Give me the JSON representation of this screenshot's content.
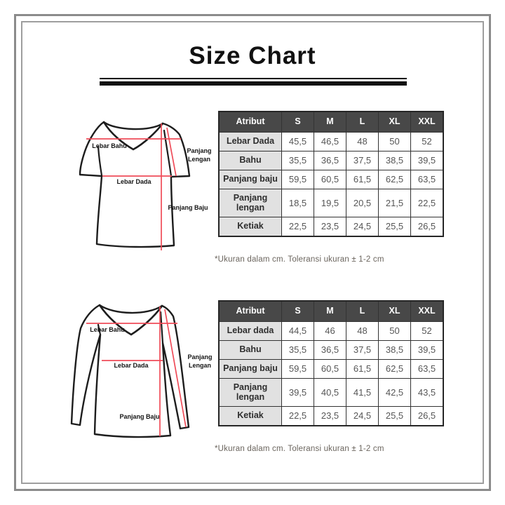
{
  "page": {
    "title": "Size Chart"
  },
  "colors": {
    "measure_line": "#ef4b58",
    "table_header_bg": "#484848",
    "attribute_cell_bg": "#e1e1e1",
    "frame_border": "#8b8b8b",
    "underline": "#111111"
  },
  "sections": [
    {
      "name": "short-sleeve",
      "diagram": {
        "garment": "short-sleeve-vneck-top",
        "labels": {
          "lebar_bahu": "Lebar Bahu",
          "lebar_dada": "Lebar Dada",
          "panjang_baju": "Panjang Baju",
          "panjang_lengan_line1": "Panjang",
          "panjang_lengan_line2": "Lengan"
        }
      },
      "table": {
        "headers": [
          "Atribut",
          "S",
          "M",
          "L",
          "XL",
          "XXL"
        ],
        "rows": [
          {
            "label": "Lebar Dada",
            "values": [
              "45,5",
              "46,5",
              "48",
              "50",
              "52"
            ]
          },
          {
            "label": "Bahu",
            "values": [
              "35,5",
              "36,5",
              "37,5",
              "38,5",
              "39,5"
            ]
          },
          {
            "label": "Panjang baju",
            "values": [
              "59,5",
              "60,5",
              "61,5",
              "62,5",
              "63,5"
            ]
          },
          {
            "label": "Panjang lengan",
            "values": [
              "18,5",
              "19,5",
              "20,5",
              "21,5",
              "22,5"
            ]
          },
          {
            "label": "Ketiak",
            "values": [
              "22,5",
              "23,5",
              "24,5",
              "25,5",
              "26,5"
            ]
          }
        ]
      },
      "note": "*Ukuran dalam cm. Toleransi ukuran ± 1-2 cm"
    },
    {
      "name": "long-sleeve",
      "diagram": {
        "garment": "long-sleeve-vneck-top",
        "labels": {
          "lebar_bahu": "Lebar Bahu",
          "lebar_dada": "Lebar Dada",
          "panjang_baju": "Panjang Baju",
          "panjang_lengan_line1": "Panjang",
          "panjang_lengan_line2": "Lengan"
        }
      },
      "table": {
        "headers": [
          "Atribut",
          "S",
          "M",
          "L",
          "XL",
          "XXL"
        ],
        "rows": [
          {
            "label": "Lebar dada",
            "values": [
              "44,5",
              "46",
              "48",
              "50",
              "52"
            ]
          },
          {
            "label": "Bahu",
            "values": [
              "35,5",
              "36,5",
              "37,5",
              "38,5",
              "39,5"
            ]
          },
          {
            "label": "Panjang baju",
            "values": [
              "59,5",
              "60,5",
              "61,5",
              "62,5",
              "63,5"
            ]
          },
          {
            "label": "Panjang lengan",
            "values": [
              "39,5",
              "40,5",
              "41,5",
              "42,5",
              "43,5"
            ]
          },
          {
            "label": "Ketiak",
            "values": [
              "22,5",
              "23,5",
              "24,5",
              "25,5",
              "26,5"
            ]
          }
        ]
      },
      "note": "*Ukuran dalam cm. Toleransi ukuran ± 1-2 cm"
    }
  ]
}
